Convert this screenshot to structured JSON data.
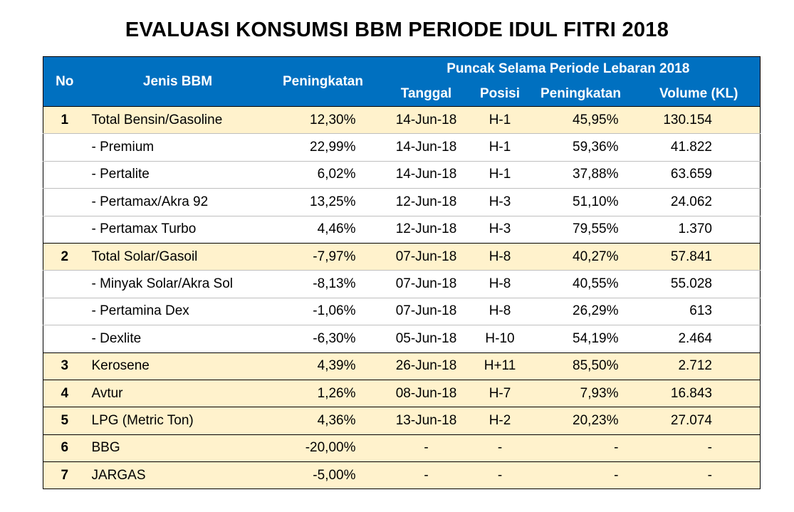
{
  "title": "EVALUASI KONSUMSI BBM PERIODE IDUL FITRI 2018",
  "header": {
    "no": "No",
    "jenis": "Jenis BBM",
    "peningkatan": "Peningkatan",
    "puncak": "Puncak Selama Periode Lebaran 2018",
    "columns": [
      "Tanggal",
      "Posisi",
      "Peningkatan",
      "Volume (KL)"
    ]
  },
  "rows": [
    [
      "1",
      "Total Bensin/Gasoline",
      "12,30%",
      "14-Jun-18",
      "H-1",
      "45,95%",
      "130.154"
    ],
    [
      null,
      "- Premium",
      "22,99%",
      "14-Jun-18",
      "H-1",
      "59,36%",
      "41.822"
    ],
    [
      null,
      "- Pertalite",
      "6,02%",
      "14-Jun-18",
      "H-1",
      "37,88%",
      "63.659"
    ],
    [
      null,
      "- Pertamax/Akra 92",
      "13,25%",
      "12-Jun-18",
      "H-3",
      "51,10%",
      "24.062"
    ],
    [
      null,
      "- Pertamax Turbo",
      "4,46%",
      "12-Jun-18",
      "H-3",
      "79,55%",
      "1.370"
    ],
    [
      "2",
      "Total Solar/Gasoil",
      "-7,97%",
      "07-Jun-18",
      "H-8",
      "40,27%",
      "57.841"
    ],
    [
      null,
      "- Minyak Solar/Akra Sol",
      "-8,13%",
      "07-Jun-18",
      "H-8",
      "40,55%",
      "55.028"
    ],
    [
      null,
      "- Pertamina Dex",
      "-1,06%",
      "07-Jun-18",
      "H-8",
      "26,29%",
      "613"
    ],
    [
      null,
      "- Dexlite",
      "-6,30%",
      "05-Jun-18",
      "H-10",
      "54,19%",
      "2.464"
    ],
    [
      "3",
      "Kerosene",
      "4,39%",
      "26-Jun-18",
      "H+11",
      "85,50%",
      "2.712"
    ],
    [
      "4",
      "Avtur",
      "1,26%",
      "08-Jun-18",
      "H-7",
      "7,93%",
      "16.843"
    ],
    [
      "5",
      "LPG (Metric Ton)",
      "4,36%",
      "13-Jun-18",
      "H-2",
      "20,23%",
      "27.074"
    ],
    [
      "6",
      "BBG",
      "-20,00%",
      "-",
      "-",
      "-",
      "-"
    ],
    [
      "7",
      "JARGAS",
      "-5,00%",
      "-",
      "-",
      "-",
      "-"
    ]
  ]
}
